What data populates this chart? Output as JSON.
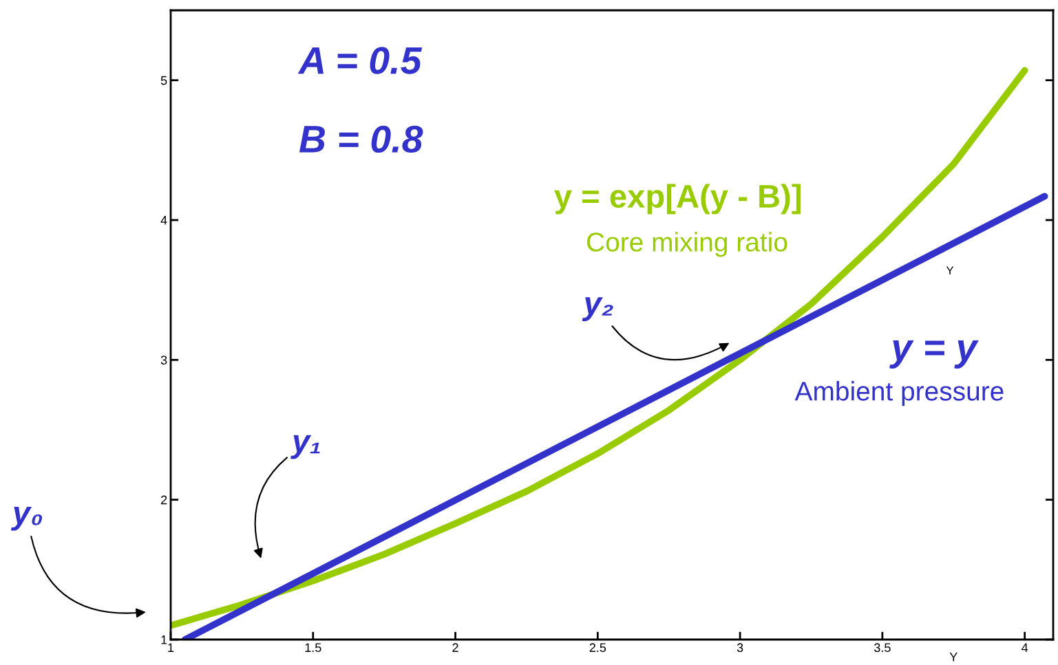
{
  "chart_data": {
    "type": "line",
    "xlabel": "Y",
    "xlim": [
      1,
      4.1
    ],
    "ylim": [
      1,
      5.5
    ],
    "xticks": [
      1,
      1.5,
      2,
      2.5,
      3,
      3.5,
      4
    ],
    "yticks": [
      1,
      2,
      3,
      4,
      5
    ],
    "grid": false,
    "legend": false,
    "marker": "none",
    "line_style": "solid",
    "series": [
      {
        "color": "#99cc00",
        "x": [
          1,
          1.25,
          1.5,
          1.75,
          2,
          2.25,
          2.5,
          2.75,
          3,
          3.25,
          3.5,
          3.75,
          4.0
        ],
        "values": [
          1.1,
          1.25,
          1.42,
          1.61,
          1.83,
          2.06,
          2.33,
          2.64,
          3.0,
          3.4,
          3.88,
          4.4,
          5.07
        ]
      },
      {
        "color": "#3333cc",
        "x": [
          1.05,
          4.07
        ],
        "values": [
          1.0,
          4.17
        ]
      }
    ],
    "annotations": [
      "A = 0.5",
      "B = 0.8",
      "y = exp[A(y - B)]",
      "Core mixing ratio",
      "y = y",
      "Ambient pressure",
      "Y",
      "y₀",
      "y₁",
      "y₂"
    ]
  }
}
